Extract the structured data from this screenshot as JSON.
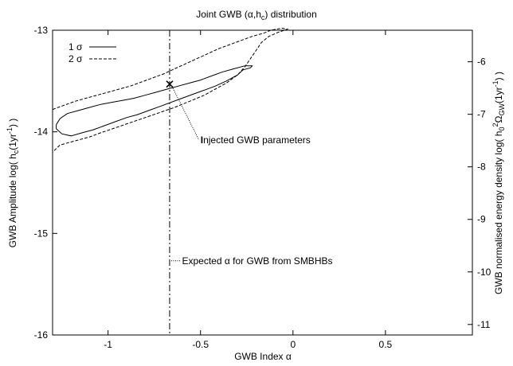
{
  "chart_data": {
    "type": "line",
    "title": "Joint GWB (α,h",
    "title_sub": "c",
    "title_end": ") distribution",
    "xlabel": "GWB Index α",
    "ylabel_left": "GWB Amplitude   log(  h",
    "ylabel_left_sub": "c",
    "ylabel_left_end": "(1yr",
    "ylabel_left_sup": "-1",
    "ylabel_left_close": ")  )",
    "ylabel_right": "GWB normalised energy density   log(  h",
    "ylabel_right_sub0": "0",
    "ylabel_right_sup2": "2",
    "ylabel_right_omega": "Ω",
    "ylabel_right_subgw": "GW",
    "ylabel_right_mid": "(1yr",
    "ylabel_right_sup": "-1",
    "ylabel_right_close": ")  )",
    "xlim": [
      -1.3,
      0.97
    ],
    "ylim": [
      -16,
      -13
    ],
    "y2lim": [
      -11.2,
      -5.4
    ],
    "x_ticks": [
      -1,
      -0.5,
      0,
      0.5
    ],
    "x_tick_labels": [
      "-1",
      "-0.5",
      "0",
      "0.5"
    ],
    "y_ticks": [
      -16,
      -15,
      -14,
      -13
    ],
    "y_tick_labels": [
      "-16",
      "-15",
      "-14",
      "-13"
    ],
    "y2_ticks": [
      -11,
      -10,
      -9,
      -8,
      -7,
      -6
    ],
    "y2_tick_labels": [
      "-11",
      "-10",
      "-9",
      "-8",
      "-7",
      "-6"
    ],
    "legend": [
      {
        "label": "1 σ",
        "dash": "solid"
      },
      {
        "label": "2 σ",
        "dash": "dashed"
      }
    ],
    "series": [
      {
        "name": "1 σ",
        "style": "solid",
        "points": [
          [
            -1.28,
            -13.93
          ],
          [
            -1.26,
            -13.87
          ],
          [
            -1.22,
            -13.82
          ],
          [
            -1.16,
            -13.79
          ],
          [
            -1.1,
            -13.76
          ],
          [
            -1.04,
            -13.73
          ],
          [
            -0.98,
            -13.71
          ],
          [
            -0.92,
            -13.69
          ],
          [
            -0.86,
            -13.67
          ],
          [
            -0.8,
            -13.64
          ],
          [
            -0.74,
            -13.61
          ],
          [
            -0.68,
            -13.58
          ],
          [
            -0.62,
            -13.55
          ],
          [
            -0.56,
            -13.52
          ],
          [
            -0.5,
            -13.49
          ],
          [
            -0.44,
            -13.45
          ],
          [
            -0.38,
            -13.41
          ],
          [
            -0.32,
            -13.38
          ],
          [
            -0.26,
            -13.35
          ],
          [
            -0.22,
            -13.35
          ],
          [
            -0.23,
            -13.37
          ],
          [
            -0.27,
            -13.39
          ],
          [
            -0.3,
            -13.44
          ],
          [
            -0.36,
            -13.5
          ],
          [
            -0.42,
            -13.55
          ],
          [
            -0.48,
            -13.59
          ],
          [
            -0.54,
            -13.63
          ],
          [
            -0.6,
            -13.67
          ],
          [
            -0.66,
            -13.71
          ],
          [
            -0.72,
            -13.75
          ],
          [
            -0.78,
            -13.79
          ],
          [
            -0.84,
            -13.83
          ],
          [
            -0.9,
            -13.86
          ],
          [
            -0.96,
            -13.9
          ],
          [
            -1.02,
            -13.94
          ],
          [
            -1.08,
            -13.98
          ],
          [
            -1.14,
            -14.01
          ],
          [
            -1.2,
            -14.04
          ],
          [
            -1.25,
            -14.02
          ],
          [
            -1.28,
            -13.97
          ],
          [
            -1.28,
            -13.93
          ]
        ]
      },
      {
        "name": "2 σ",
        "style": "dashed",
        "points": [
          [
            -1.3,
            -13.78
          ],
          [
            -1.24,
            -13.74
          ],
          [
            -1.18,
            -13.7
          ],
          [
            -1.12,
            -13.67
          ],
          [
            -1.06,
            -13.64
          ],
          [
            -1.0,
            -13.61
          ],
          [
            -0.94,
            -13.58
          ],
          [
            -0.88,
            -13.55
          ],
          [
            -0.82,
            -13.51
          ],
          [
            -0.76,
            -13.47
          ],
          [
            -0.7,
            -13.43
          ],
          [
            -0.64,
            -13.38
          ],
          [
            -0.58,
            -13.33
          ],
          [
            -0.52,
            -13.28
          ],
          [
            -0.46,
            -13.23
          ],
          [
            -0.4,
            -13.18
          ],
          [
            -0.34,
            -13.14
          ],
          [
            -0.28,
            -13.1
          ],
          [
            -0.22,
            -13.06
          ],
          [
            -0.16,
            -13.03
          ],
          [
            -0.12,
            -13.0
          ],
          [
            -0.06,
            -12.98
          ],
          [
            -0.03,
            -12.99
          ],
          [
            -0.08,
            -13.02
          ],
          [
            -0.13,
            -13.06
          ],
          [
            -0.17,
            -13.12
          ],
          [
            -0.2,
            -13.2
          ],
          [
            -0.23,
            -13.28
          ],
          [
            -0.26,
            -13.36
          ],
          [
            -0.3,
            -13.44
          ],
          [
            -0.36,
            -13.52
          ],
          [
            -0.42,
            -13.58
          ],
          [
            -0.48,
            -13.64
          ],
          [
            -0.56,
            -13.7
          ],
          [
            -0.64,
            -13.76
          ],
          [
            -0.72,
            -13.81
          ],
          [
            -0.8,
            -13.86
          ],
          [
            -0.88,
            -13.91
          ],
          [
            -0.96,
            -13.96
          ],
          [
            -1.04,
            -14.01
          ],
          [
            -1.1,
            -14.05
          ],
          [
            -1.16,
            -14.08
          ],
          [
            -1.22,
            -14.11
          ],
          [
            -1.26,
            -14.13
          ],
          [
            -1.3,
            -14.2
          ]
        ]
      }
    ],
    "vertical_line": {
      "x": -0.667,
      "style": "dash-dot"
    },
    "injected_point": {
      "x": -0.667,
      "y": -13.53,
      "marker": "×"
    },
    "annotations": [
      {
        "text_prefix": "I",
        "text": "njected GWB parameters",
        "target_x": -0.667,
        "target_y": -13.53,
        "label_x": -0.5,
        "label_y": -14.08
      },
      {
        "text": "Expected α for GWB from SMBHBs",
        "target_x": -0.667,
        "target_y": -15.27,
        "label_x": -0.6,
        "label_y": -15.27
      }
    ]
  }
}
